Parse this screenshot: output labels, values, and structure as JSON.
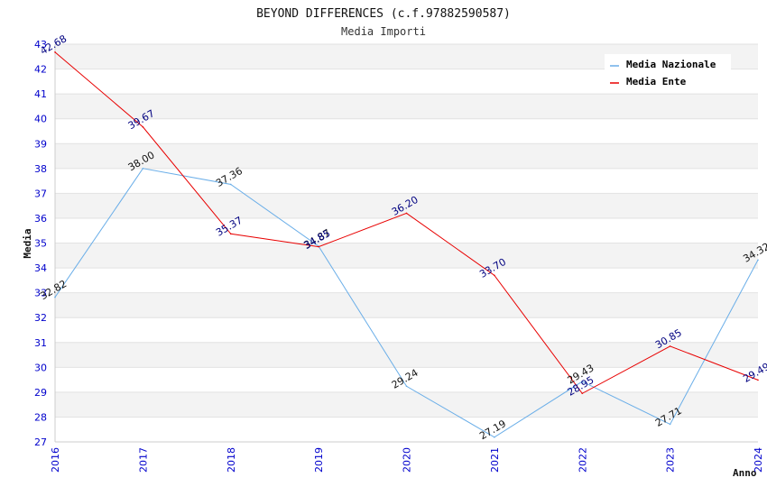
{
  "chart_data": {
    "type": "line",
    "title": "BEYOND DIFFERENCES (c.f.97882590587)",
    "subtitle": "Media Importi",
    "xlabel": "Anno",
    "ylabel": "Media",
    "x": [
      "2016",
      "2017",
      "2018",
      "2019",
      "2020",
      "2021",
      "2022",
      "2023",
      "2024"
    ],
    "ylim": [
      27,
      43
    ],
    "yticks": [
      "27",
      "28",
      "29",
      "30",
      "31",
      "32",
      "33",
      "34",
      "35",
      "36",
      "37",
      "38",
      "39",
      "40",
      "41",
      "42",
      "43"
    ],
    "grid": true,
    "legend_position": "top-right",
    "series": [
      {
        "name": "Media Nazionale",
        "color": "#6aaee8",
        "values": [
          32.82,
          38.0,
          37.36,
          34.87,
          29.24,
          27.19,
          29.43,
          27.71,
          34.32
        ],
        "labels": [
          "32.82",
          "38.00",
          "37.36",
          "34.87",
          "29.24",
          "27.19",
          "29.43",
          "27.71",
          "34.32"
        ]
      },
      {
        "name": "Media Ente",
        "color": "#e80000",
        "values": [
          42.68,
          39.67,
          35.37,
          34.85,
          36.2,
          33.7,
          28.95,
          30.85,
          29.49
        ],
        "labels": [
          "42.68",
          "39.67",
          "35.37",
          "34.85",
          "36.20",
          "33.70",
          "28.95",
          "30.85",
          "29.49"
        ]
      }
    ]
  }
}
